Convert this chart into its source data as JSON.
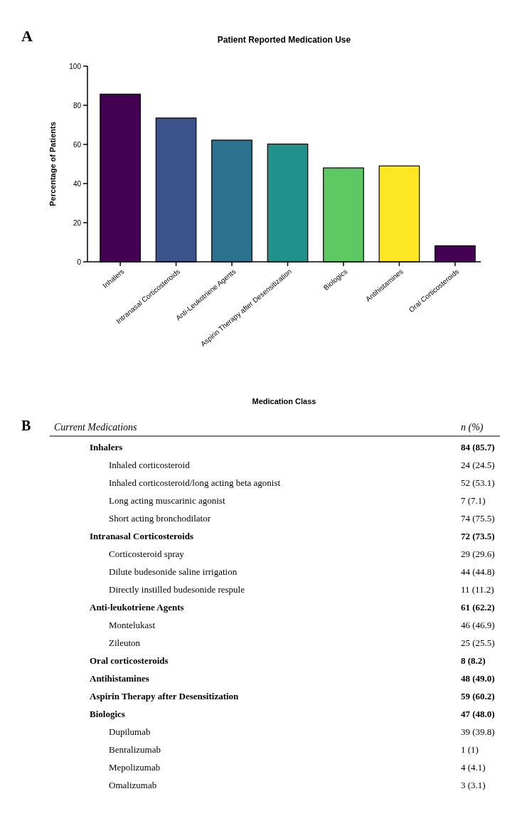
{
  "chart_data": [
    {
      "type": "bar",
      "title": "Patient Reported Medication Use",
      "xlabel": "Medication Class",
      "ylabel": "Percentage of Patients",
      "annotations": [
        "A"
      ],
      "categories": [
        "Inhalers",
        "Intranasal Corticosteroids",
        "Anti-Leukotriene Agents",
        "Aspirin Therapy after Desensitization",
        "Biologics",
        "Antihistamines",
        "Oral Corticosteroids"
      ],
      "values": [
        85.7,
        73.5,
        62.2,
        60.2,
        48.0,
        49.0,
        8.2
      ],
      "colors": [
        "#440154",
        "#3b528b",
        "#2c728e",
        "#21918c",
        "#5ec962",
        "#fde725",
        "#440154"
      ],
      "ylim": [
        0,
        100
      ],
      "yticks": [
        0,
        20,
        40,
        60,
        80,
        100
      ],
      "grid": false
    },
    {
      "type": "other",
      "title": "Current Medications",
      "ylabel": "n (%)",
      "annotations": [
        "B"
      ],
      "categories": [
        "Inhalers",
        "Inhaled corticosteroid",
        "Inhaled corticosteroid/long acting beta agonist",
        "Long acting muscarinic agonist",
        "Short acting bronchodilator",
        "Intranasal Corticosteroids",
        "Corticosteroid spray",
        "Dilute budesonide saline irrigation",
        "Directly instilled budesonide respule",
        "Anti-leukotriene Agents",
        "Montelukast",
        "Zileuton",
        "Oral corticosteroids",
        "Antihistamines",
        "Aspirin Therapy after Desensitization",
        "Biologics",
        "Dupilumab",
        "Benralizumab",
        "Mepolizumab",
        "Omalizumab"
      ],
      "value_labels": [
        "84 (85.7)",
        "24 (24.5)",
        "52 (53.1)",
        "7 (7.1)",
        "74 (75.5)",
        "72 (73.5)",
        "29 (29.6)",
        "44 (44.8)",
        "11 (11.2)",
        "61 (62.2)",
        "46 (46.9)",
        "25 (25.5)",
        "8 (8.2)",
        "48 (49.0)",
        "59 (60.2)",
        "47 (48.0)",
        "39 (39.8)",
        "1 (1)",
        "4 (4.1)",
        "3 (3.1)"
      ]
    }
  ]
}
